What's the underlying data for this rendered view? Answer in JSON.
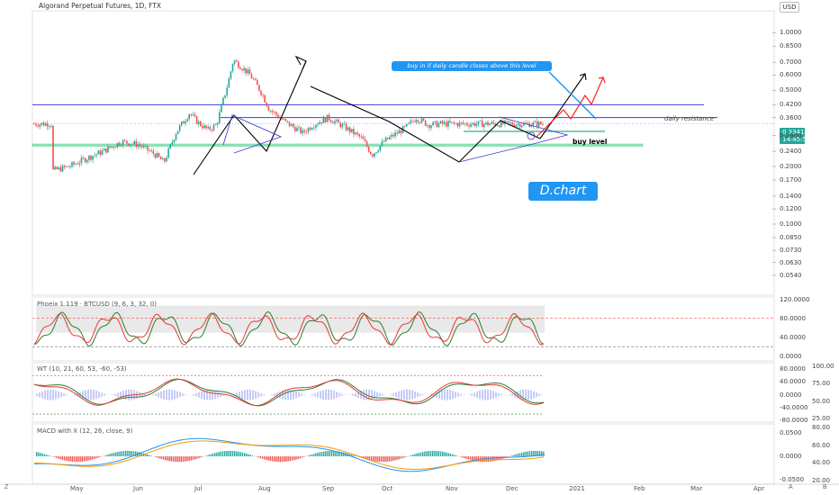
{
  "header": {
    "title": "Algorand Perpetual Futures, 1D, FTX",
    "currency_button": "USD"
  },
  "annotations": {
    "daily_resistance": "daily resistance",
    "buy_level": "buy level",
    "callout": "buy in if daily candle closes above this level",
    "brand": "D.chart"
  },
  "price_tags": {
    "last_price": "0.3341",
    "countdown": "14:45:57"
  },
  "colors": {
    "bull": "#26a69a",
    "bear": "#ef5350",
    "trend": "#000000",
    "level": "#3f3fd8",
    "green_zone": "#5fe0a0",
    "callout": "#2196f3",
    "forecast": "#ff2222"
  },
  "chart_data": [
    {
      "type": "line",
      "name": "main-price",
      "title": "Algorand Perpetual Futures, 1D, FTX",
      "yscale": "log",
      "ylim": [
        0.043,
        1.3
      ],
      "y_ticks": [
        "1.0000",
        "0.8500",
        "0.7000",
        "0.6000",
        "0.5000",
        "0.4200",
        "0.3600",
        "0.2900",
        "0.2400",
        "0.2000",
        "0.1700",
        "0.1400",
        "0.1200",
        "0.1000",
        "0.0850",
        "0.0730",
        "0.0630",
        "0.0540"
      ],
      "x_ticks": [
        "May",
        "Jun",
        "Jul",
        "Aug",
        "Sep",
        "Oct",
        "Nov",
        "Dec",
        "2021",
        "Feb",
        "Mar",
        "Apr"
      ],
      "series": [
        {
          "name": "",
          "x": [
            "Apr 30",
            "May 10",
            "May 20",
            "May 30",
            "Jun 10",
            "Jun 20",
            "Jun 30",
            "Jul 5",
            "Jul 12",
            "Jul 20",
            "Jul 25",
            "Jul 31",
            "Aug 5",
            "Aug 12",
            "Aug 15",
            "Aug 20",
            "Aug 25",
            "Sep 1",
            "Sep 5",
            "Sep 15",
            "Sep 25",
            "Oct 1",
            "Oct 10",
            "Oct 20",
            "Oct 30",
            "Nov 5",
            "Nov 12",
            "Nov 20",
            "Nov 25",
            "Dec 1",
            "Dec 8",
            "Dec 15"
          ],
          "values": [
            0.19,
            0.2,
            0.22,
            0.24,
            0.27,
            0.26,
            0.23,
            0.21,
            0.3,
            0.38,
            0.34,
            0.31,
            0.33,
            0.55,
            0.72,
            0.66,
            0.6,
            0.48,
            0.4,
            0.34,
            0.3,
            0.33,
            0.36,
            0.32,
            0.28,
            0.23,
            0.27,
            0.3,
            0.32,
            0.36,
            0.33,
            0.3341
          ]
        }
      ],
      "levels": {
        "resistance_upper": 0.42,
        "daily_resistance": 0.36,
        "buy_level": 0.305,
        "support_zone": [
          0.255,
          0.262
        ]
      },
      "last_price": 0.3341
    },
    {
      "type": "line",
      "name": "phoenix",
      "title": "Phoeix 1.119 · BTCUSD (9, 6, 3, 32, 0)",
      "ylim": [
        -10,
        125
      ],
      "y_ticks": [
        "120.0000",
        "80.0000",
        "40.0000",
        "0.0000"
      ],
      "dashed_levels": [
        80,
        20
      ]
    },
    {
      "type": "line",
      "name": "wavetrend",
      "title": "WT (10, 21, 60, 53, -60, -53)",
      "ylim": [
        -85,
        100
      ],
      "y_ticks": [
        "80.0000",
        "40.0000",
        "0.0000",
        "-40.0000",
        "-80.0000"
      ],
      "y_ticks_right": [
        "100.00",
        "75.00",
        "50.00",
        "25.00"
      ],
      "dashed_levels": [
        60,
        -60
      ]
    },
    {
      "type": "line",
      "name": "macd",
      "title": "MACD with X (12, 26, close, 9)",
      "ylim": [
        -0.06,
        0.07
      ],
      "y_ticks": [
        "0.0500",
        "0.0000",
        "-0.0500"
      ],
      "y_ticks_right": [
        "80.00",
        "60.00",
        "40.00",
        "20.00"
      ]
    }
  ]
}
